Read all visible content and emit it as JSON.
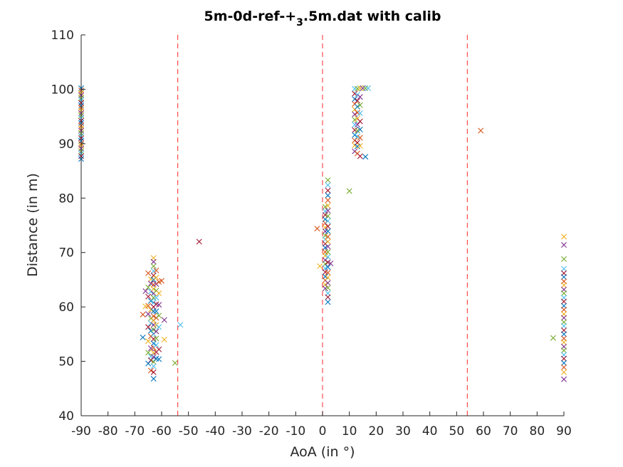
{
  "chart_data": {
    "type": "scatter",
    "title": "5m-0d-ref-+",
    "title_subscript": "3",
    "title_suffix": ".5m.dat with calib",
    "xlabel": "AoA (in °)",
    "ylabel": "Distance (in m)",
    "xlim": [
      -90,
      90
    ],
    "ylim": [
      40,
      110
    ],
    "xticks": [
      -90,
      -80,
      -70,
      -60,
      -50,
      -40,
      -30,
      -20,
      -10,
      0,
      10,
      20,
      30,
      40,
      50,
      60,
      70,
      80,
      90
    ],
    "yticks": [
      40,
      50,
      60,
      70,
      80,
      90,
      100,
      110
    ],
    "grid": false,
    "marker": "x",
    "series_colors": [
      "#0072BD",
      "#D95319",
      "#EDB120",
      "#7E2F8E",
      "#77AC30",
      "#4DBEEE",
      "#A2142F"
    ],
    "reference_lines": {
      "orientation": "vertical",
      "style": "dashed",
      "color": "#FF4D4D",
      "x": [
        -54,
        0,
        54
      ]
    },
    "points": [
      [
        -90,
        100.2
      ],
      [
        -90,
        99.8
      ],
      [
        -90,
        99.3
      ],
      [
        -90,
        98.9
      ],
      [
        -90,
        98.4
      ],
      [
        -90,
        98.0
      ],
      [
        -90,
        97.5
      ],
      [
        -90,
        97.0
      ],
      [
        -90,
        96.6
      ],
      [
        -90,
        96.1
      ],
      [
        -90,
        95.6
      ],
      [
        -90,
        95.2
      ],
      [
        -90,
        94.7
      ],
      [
        -90,
        94.2
      ],
      [
        -90,
        93.8
      ],
      [
        -90,
        93.3
      ],
      [
        -90,
        92.8
      ],
      [
        -90,
        92.4
      ],
      [
        -90,
        91.9
      ],
      [
        -90,
        91.4
      ],
      [
        -90,
        91.0
      ],
      [
        -90,
        90.5
      ],
      [
        -90,
        90.0
      ],
      [
        -90,
        89.6
      ],
      [
        -90,
        89.1
      ],
      [
        -90,
        88.6
      ],
      [
        -90,
        88.2
      ],
      [
        -90,
        87.7
      ],
      [
        -90,
        87.2
      ],
      [
        -65,
        66.2
      ],
      [
        -64,
        65.1
      ],
      [
        -64,
        64.3
      ],
      [
        -65,
        63.6
      ],
      [
        -64,
        62.8
      ],
      [
        -65,
        61.9
      ],
      [
        -64,
        61.1
      ],
      [
        -65,
        60.2
      ],
      [
        -64,
        59.5
      ],
      [
        -65,
        58.7
      ],
      [
        -64,
        57.9
      ],
      [
        -64,
        57.0
      ],
      [
        -65,
        56.3
      ],
      [
        -64,
        55.6
      ],
      [
        -64,
        54.6
      ],
      [
        -65,
        53.7
      ],
      [
        -64,
        52.4
      ],
      [
        -65,
        51.6
      ],
      [
        -64,
        50.9
      ],
      [
        -64,
        50.2
      ],
      [
        -65,
        49.6
      ],
      [
        -64,
        48.3
      ],
      [
        -63,
        69.0
      ],
      [
        -63,
        68.3
      ],
      [
        -63,
        67.5
      ],
      [
        -63,
        66.6
      ],
      [
        -63,
        65.8
      ],
      [
        -63,
        65.0
      ],
      [
        -63,
        64.1
      ],
      [
        -63,
        63.3
      ],
      [
        -63,
        62.5
      ],
      [
        -63,
        61.7
      ],
      [
        -63,
        60.8
      ],
      [
        -63,
        60.0
      ],
      [
        -63,
        59.2
      ],
      [
        -63,
        58.3
      ],
      [
        -63,
        57.5
      ],
      [
        -63,
        56.7
      ],
      [
        -63,
        55.8
      ],
      [
        -63,
        55.0
      ],
      [
        -63,
        54.1
      ],
      [
        -63,
        53.3
      ],
      [
        -63,
        52.5
      ],
      [
        -63,
        51.6
      ],
      [
        -63,
        50.8
      ],
      [
        -63,
        49.9
      ],
      [
        -63,
        49.1
      ],
      [
        -63,
        48.0
      ],
      [
        -63,
        46.8
      ],
      [
        -62,
        66.7
      ],
      [
        -62,
        65.4
      ],
      [
        -62,
        64.2
      ],
      [
        -62,
        63.0
      ],
      [
        -62,
        61.7
      ],
      [
        -62,
        60.5
      ],
      [
        -62,
        59.2
      ],
      [
        -62,
        58.0
      ],
      [
        -62,
        56.7
      ],
      [
        -62,
        55.5
      ],
      [
        -62,
        54.2
      ],
      [
        -62,
        53.0
      ],
      [
        -62,
        51.7
      ],
      [
        -62,
        50.5
      ],
      [
        -61,
        64.6
      ],
      [
        -61,
        62.5
      ],
      [
        -61,
        60.4
      ],
      [
        -61,
        58.4
      ],
      [
        -61,
        56.3
      ],
      [
        -61,
        52.2
      ],
      [
        -61,
        50.4
      ],
      [
        -60,
        64.8
      ],
      [
        -59,
        54.0
      ],
      [
        -59,
        57.6
      ],
      [
        -55,
        49.7
      ],
      [
        -53,
        56.7
      ],
      [
        -46,
        72.0
      ],
      [
        -67,
        54.4
      ],
      [
        -67,
        58.6
      ],
      [
        -66,
        60.1
      ],
      [
        -66,
        62.9
      ],
      [
        1,
        78.4
      ],
      [
        1,
        77.6
      ],
      [
        1,
        76.9
      ],
      [
        1,
        76.1
      ],
      [
        1,
        75.4
      ],
      [
        1,
        74.6
      ],
      [
        1,
        73.9
      ],
      [
        1,
        73.1
      ],
      [
        1,
        72.4
      ],
      [
        1,
        71.6
      ],
      [
        1,
        70.9
      ],
      [
        1,
        70.1
      ],
      [
        1,
        69.4
      ],
      [
        1,
        68.6
      ],
      [
        1,
        67.9
      ],
      [
        1,
        67.1
      ],
      [
        1,
        66.4
      ],
      [
        1,
        65.6
      ],
      [
        1,
        64.9
      ],
      [
        1,
        64.1
      ],
      [
        1,
        63.4
      ],
      [
        2,
        83.3
      ],
      [
        2,
        82.4
      ],
      [
        2,
        81.4
      ],
      [
        2,
        80.5
      ],
      [
        2,
        79.6
      ],
      [
        2,
        78.6
      ],
      [
        2,
        77.7
      ],
      [
        2,
        76.7
      ],
      [
        2,
        75.8
      ],
      [
        2,
        74.8
      ],
      [
        2,
        73.9
      ],
      [
        2,
        72.9
      ],
      [
        2,
        72.0
      ],
      [
        2,
        71.1
      ],
      [
        2,
        70.1
      ],
      [
        2,
        69.2
      ],
      [
        2,
        68.2
      ],
      [
        2,
        67.3
      ],
      [
        2,
        66.3
      ],
      [
        2,
        65.4
      ],
      [
        2,
        64.4
      ],
      [
        2,
        63.5
      ],
      [
        2,
        62.5
      ],
      [
        2,
        61.8
      ],
      [
        2,
        60.9
      ],
      [
        -2,
        74.4
      ],
      [
        -1,
        67.5
      ],
      [
        3,
        68.0
      ],
      [
        10,
        81.3
      ],
      [
        12,
        100.1
      ],
      [
        12,
        99.2
      ],
      [
        12,
        98.2
      ],
      [
        12,
        97.3
      ],
      [
        12,
        96.3
      ],
      [
        12,
        95.4
      ],
      [
        12,
        94.4
      ],
      [
        12,
        93.5
      ],
      [
        12,
        92.5
      ],
      [
        12,
        91.6
      ],
      [
        12,
        90.6
      ],
      [
        12,
        89.7
      ],
      [
        12,
        88.6
      ],
      [
        13,
        100.1
      ],
      [
        13,
        99.0
      ],
      [
        13,
        97.9
      ],
      [
        13,
        96.8
      ],
      [
        13,
        95.7
      ],
      [
        13,
        94.6
      ],
      [
        13,
        93.5
      ],
      [
        13,
        92.4
      ],
      [
        13,
        91.3
      ],
      [
        13,
        90.2
      ],
      [
        13,
        89.5
      ],
      [
        13,
        88.2
      ],
      [
        14,
        100.2
      ],
      [
        14,
        98.6
      ],
      [
        14,
        97.1
      ],
      [
        14,
        95.6
      ],
      [
        14,
        94.1
      ],
      [
        14,
        92.6
      ],
      [
        14,
        91.1
      ],
      [
        14,
        89.6
      ],
      [
        15,
        100.2
      ],
      [
        16,
        100.2
      ],
      [
        17,
        100.2
      ],
      [
        14,
        87.7
      ],
      [
        16,
        87.6
      ],
      [
        59,
        92.4
      ],
      [
        90,
        72.9
      ],
      [
        90,
        71.4
      ],
      [
        90,
        68.8
      ],
      [
        90,
        67.0
      ],
      [
        90,
        66.2
      ],
      [
        90,
        65.5
      ],
      [
        90,
        64.7
      ],
      [
        90,
        64.0
      ],
      [
        90,
        63.2
      ],
      [
        90,
        62.5
      ],
      [
        90,
        61.7
      ],
      [
        90,
        61.0
      ],
      [
        90,
        60.2
      ],
      [
        90,
        59.5
      ],
      [
        90,
        58.7
      ],
      [
        90,
        58.0
      ],
      [
        90,
        57.2
      ],
      [
        90,
        56.5
      ],
      [
        90,
        55.7
      ],
      [
        90,
        55.0
      ],
      [
        90,
        54.2
      ],
      [
        90,
        53.5
      ],
      [
        90,
        52.7
      ],
      [
        90,
        52.0
      ],
      [
        90,
        51.2
      ],
      [
        90,
        50.5
      ],
      [
        90,
        49.7
      ],
      [
        90,
        48.9
      ],
      [
        90,
        48.0
      ],
      [
        90,
        46.7
      ],
      [
        86,
        54.3
      ]
    ]
  }
}
